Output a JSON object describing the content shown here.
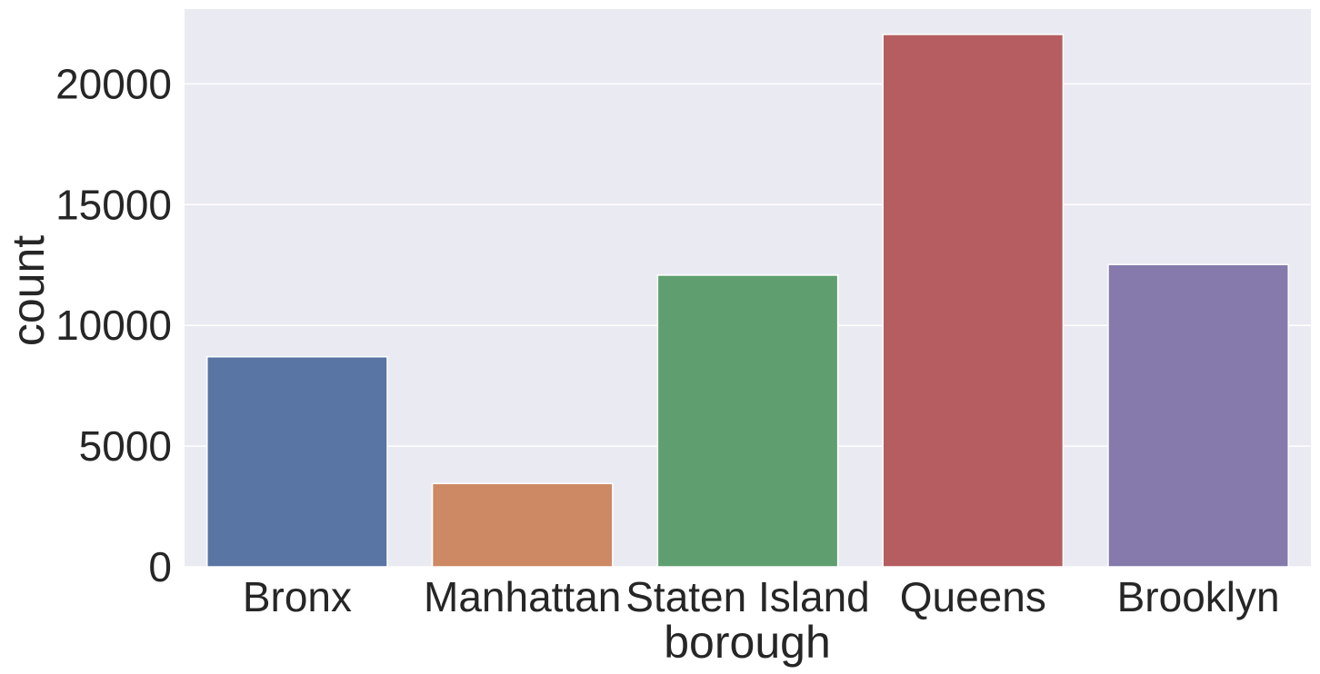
{
  "chart_data": {
    "type": "bar",
    "title": "",
    "xlabel": "borough",
    "ylabel": "count",
    "categories": [
      "Bronx",
      "Manhattan",
      "Staten Island",
      "Queens",
      "Brooklyn"
    ],
    "values": [
      8700,
      3450,
      12080,
      22050,
      12520
    ],
    "colors": [
      "#5975a4",
      "#cc8963",
      "#5f9e6e",
      "#b55d60",
      "#857aab"
    ],
    "ylim": [
      0,
      23100
    ],
    "yticks": [
      0,
      5000,
      10000,
      15000,
      20000
    ],
    "ytick_labels": [
      "0",
      "5000",
      "10000",
      "15000",
      "20000"
    ],
    "grid": true,
    "plot_background": "#eaeaf2",
    "grid_color": "#ffffff"
  }
}
